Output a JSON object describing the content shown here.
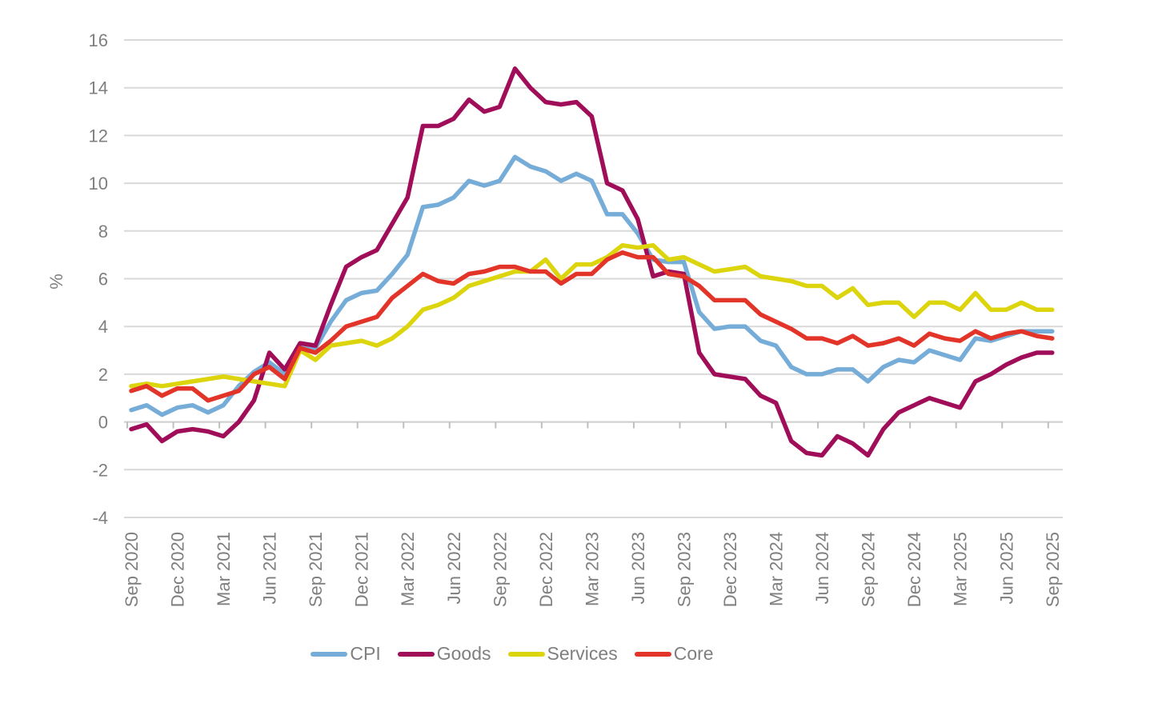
{
  "chart_data": {
    "type": "line",
    "title": "",
    "ylabel": "%",
    "ylim": [
      -4,
      16
    ],
    "ytick_step": 2,
    "yticks": [
      16,
      14,
      12,
      10,
      8,
      6,
      4,
      2,
      0,
      -2,
      -4
    ],
    "x_tick_labels": [
      "Sep 2020",
      "Dec 2020",
      "Mar 2021",
      "Jun 2021",
      "Sep 2021",
      "Dec 2021",
      "Mar 2022",
      "Jun 2022",
      "Sep 2022",
      "Dec 2022",
      "Mar 2023",
      "Jun 2023",
      "Sep 2023",
      "Dec 2023",
      "Mar 2024",
      "Jun 2024",
      "Sep 2024",
      "Dec 2024",
      "Mar 2025",
      "Jun 2025",
      "Sep 2025"
    ],
    "months_per_tick": 3,
    "n_points": 61,
    "grid": "horizontal",
    "legend_position": "bottom",
    "series": [
      {
        "name": "CPI",
        "color": "#76ADD8",
        "values": [
          0.5,
          0.7,
          0.3,
          0.6,
          0.7,
          0.4,
          0.7,
          1.5,
          2.1,
          2.5,
          2.0,
          3.2,
          3.1,
          4.2,
          5.1,
          5.4,
          5.5,
          6.2,
          7.0,
          9.0,
          9.1,
          9.4,
          10.1,
          9.9,
          10.1,
          11.1,
          10.7,
          10.5,
          10.1,
          10.4,
          10.1,
          8.7,
          8.7,
          7.9,
          6.8,
          6.7,
          6.7,
          4.6,
          3.9,
          4.0,
          4.0,
          3.4,
          3.2,
          2.3,
          2.0,
          2.0,
          2.2,
          2.2,
          1.7,
          2.3,
          2.6,
          2.5,
          3.0,
          2.8,
          2.6,
          3.5,
          3.4,
          3.6,
          3.8,
          3.8,
          3.8
        ]
      },
      {
        "name": "Goods",
        "color": "#A00E59",
        "values": [
          -0.3,
          -0.1,
          -0.8,
          -0.4,
          -0.3,
          -0.4,
          -0.6,
          0.0,
          0.9,
          2.9,
          2.2,
          3.3,
          3.2,
          4.9,
          6.5,
          6.9,
          7.2,
          8.3,
          9.4,
          12.4,
          12.4,
          12.7,
          13.5,
          13.0,
          13.2,
          14.8,
          14.0,
          13.4,
          13.3,
          13.4,
          12.8,
          10.0,
          9.7,
          8.5,
          6.1,
          6.3,
          6.2,
          2.9,
          2.0,
          1.9,
          1.8,
          1.1,
          0.8,
          -0.8,
          -1.3,
          -1.4,
          -0.6,
          -0.9,
          -1.4,
          -0.3,
          0.4,
          0.7,
          1.0,
          0.8,
          0.6,
          1.7,
          2.0,
          2.4,
          2.7,
          2.9,
          2.9
        ]
      },
      {
        "name": "Services",
        "color": "#DCD40C",
        "values": [
          1.5,
          1.6,
          1.5,
          1.6,
          1.7,
          1.8,
          1.9,
          1.8,
          1.7,
          1.6,
          1.5,
          3.0,
          2.6,
          3.2,
          3.3,
          3.4,
          3.2,
          3.5,
          4.0,
          4.7,
          4.9,
          5.2,
          5.7,
          5.9,
          6.1,
          6.3,
          6.3,
          6.8,
          6.0,
          6.6,
          6.6,
          6.9,
          7.4,
          7.3,
          7.4,
          6.8,
          6.9,
          6.6,
          6.3,
          6.4,
          6.5,
          6.1,
          6.0,
          5.9,
          5.7,
          5.7,
          5.2,
          5.6,
          4.9,
          5.0,
          5.0,
          4.4,
          5.0,
          5.0,
          4.7,
          5.4,
          4.7,
          4.7,
          5.0,
          4.7,
          4.7
        ]
      },
      {
        "name": "Core",
        "color": "#E23428",
        "values": [
          1.3,
          1.5,
          1.1,
          1.4,
          1.4,
          0.9,
          1.1,
          1.3,
          2.0,
          2.3,
          1.8,
          3.1,
          2.9,
          3.4,
          4.0,
          4.2,
          4.4,
          5.2,
          5.7,
          6.2,
          5.9,
          5.8,
          6.2,
          6.3,
          6.5,
          6.5,
          6.3,
          6.3,
          5.8,
          6.2,
          6.2,
          6.8,
          7.1,
          6.9,
          6.9,
          6.2,
          6.1,
          5.7,
          5.1,
          5.1,
          5.1,
          4.5,
          4.2,
          3.9,
          3.5,
          3.5,
          3.3,
          3.6,
          3.2,
          3.3,
          3.5,
          3.2,
          3.7,
          3.5,
          3.4,
          3.8,
          3.5,
          3.7,
          3.8,
          3.6,
          3.5
        ]
      }
    ]
  },
  "legend": {
    "items": [
      "CPI",
      "Goods",
      "Services",
      "Core"
    ]
  },
  "style": {
    "grid_color": "#D9D9D9",
    "axis_color": "#BFBFBF",
    "text_color": "#7F7F7F",
    "background": "#FFFFFF"
  }
}
